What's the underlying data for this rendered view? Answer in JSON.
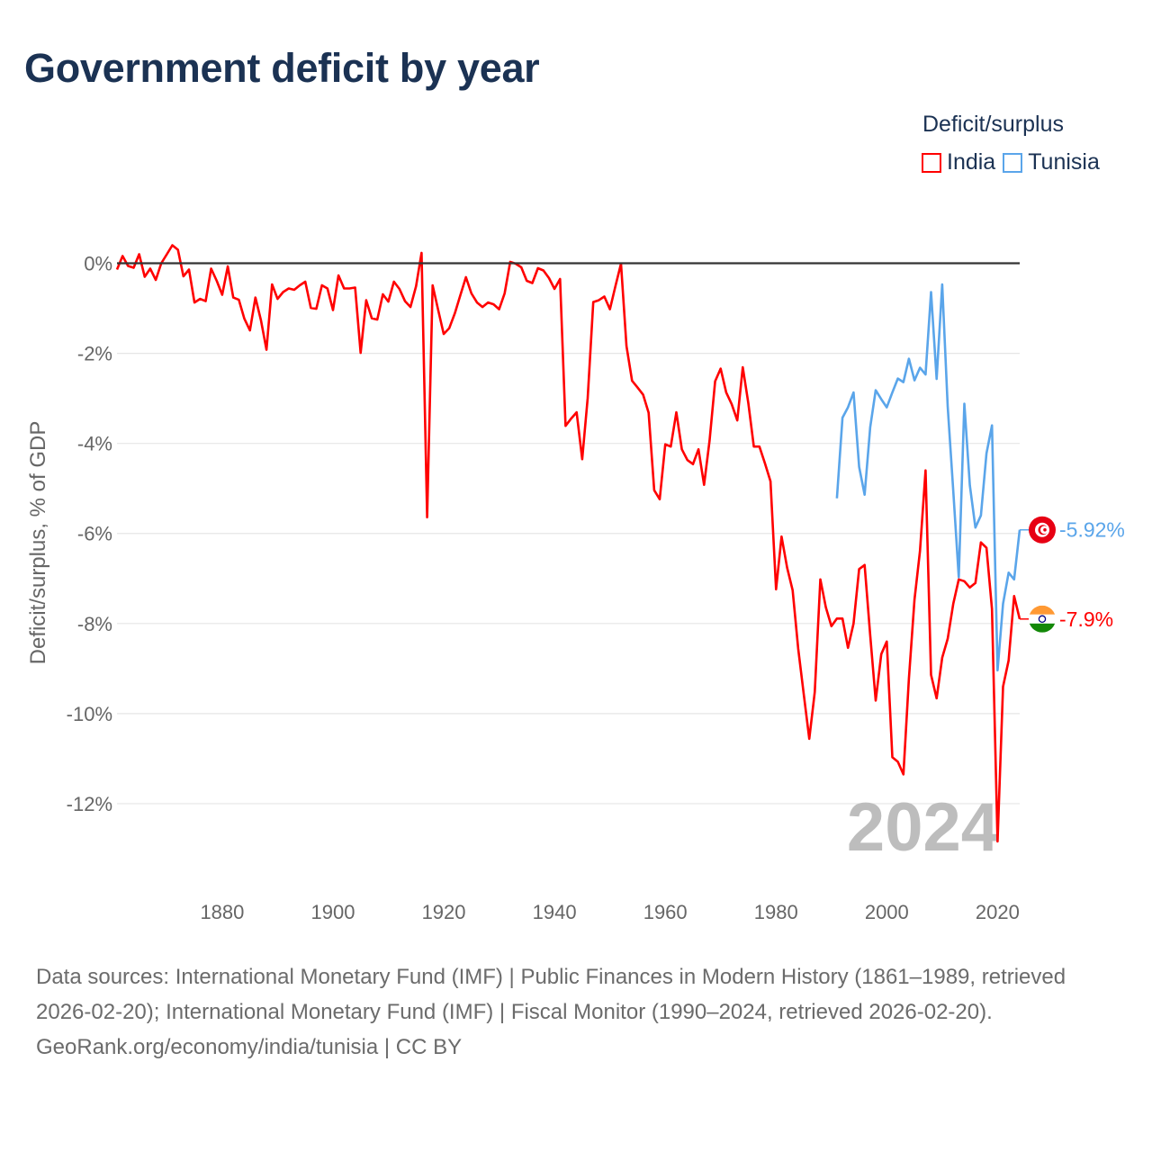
{
  "title": "Government deficit by year",
  "legend": {
    "title": "Deficit/surplus",
    "items": [
      {
        "label": "India",
        "color": "#ff0000"
      },
      {
        "label": "Tunisia",
        "color": "#5aa5ea"
      }
    ]
  },
  "year_watermark": "2024",
  "footer": {
    "sources": "Data sources: International Monetary Fund (IMF) | Public Finances in Modern History (1861–1989, retrieved 2026-02-20); International Monetary Fund (IMF) | Fiscal Monitor (1990–2024, retrieved 2026-02-20).",
    "credit": "GeoRank.org/economy/india/tunisia | CC BY"
  },
  "chart_data": {
    "type": "line",
    "title": "Government deficit by year",
    "xlabel": "",
    "ylabel": "Deficit/surplus, % of GDP",
    "xlim": [
      1861,
      2024
    ],
    "ylim": [
      -13.4,
      0.65
    ],
    "x_ticks": [
      1880,
      1900,
      1920,
      1940,
      1960,
      1980,
      2000,
      2020
    ],
    "y_ticks": [
      0,
      -2,
      -4,
      -6,
      -8,
      -10,
      -12
    ],
    "y_tick_labels": [
      "0%",
      "-2%",
      "-4%",
      "-6%",
      "-8%",
      "-10%",
      "-12%"
    ],
    "grid": true,
    "legend_position": "top-right",
    "series": [
      {
        "name": "India",
        "color": "#ff0000",
        "start_year": 1861,
        "end_label": "-7.9%",
        "flag": "india-flag",
        "values": [
          -0.14,
          0.16,
          -0.06,
          -0.1,
          0.2,
          -0.3,
          -0.12,
          -0.37,
          0,
          0.2,
          0.4,
          0.3,
          -0.29,
          -0.14,
          -0.87,
          -0.79,
          -0.84,
          -0.12,
          -0.39,
          -0.7,
          -0.07,
          -0.76,
          -0.81,
          -1.23,
          -1.49,
          -0.76,
          -1.27,
          -1.92,
          -0.47,
          -0.79,
          -0.64,
          -0.56,
          -0.59,
          -0.49,
          -0.41,
          -0.99,
          -1.01,
          -0.49,
          -0.56,
          -1.04,
          -0.27,
          -0.56,
          -0.56,
          -0.54,
          -1.99,
          -0.82,
          -1.22,
          -1.25,
          -0.69,
          -0.85,
          -0.41,
          -0.57,
          -0.84,
          -0.97,
          -0.51,
          0.23,
          -5.64,
          -0.49,
          -1.04,
          -1.57,
          -1.44,
          -1.11,
          -0.71,
          -0.31,
          -0.67,
          -0.87,
          -0.97,
          -0.87,
          -0.91,
          -1.02,
          -0.67,
          0.03,
          -0.01,
          -0.09,
          -0.39,
          -0.44,
          -0.11,
          -0.16,
          -0.33,
          -0.57,
          -0.35,
          -3.61,
          -3.45,
          -3.31,
          -4.35,
          -2.99,
          -0.86,
          -0.82,
          -0.74,
          -1.02,
          -0.51,
          -0.01,
          -1.84,
          -2.61,
          -2.76,
          -2.92,
          -3.32,
          -5.04,
          -5.24,
          -4.02,
          -4.07,
          -3.31,
          -4.13,
          -4.37,
          -4.46,
          -4.13,
          -4.92,
          -3.94,
          -2.62,
          -2.34,
          -2.87,
          -3.13,
          -3.49,
          -2.31,
          -3.11,
          -4.07,
          -4.07,
          -4.44,
          -4.84,
          -7.24,
          -6.07,
          -6.76,
          -7.26,
          -8.56,
          -9.56,
          -10.56,
          -9.52,
          -7.02,
          -7.64,
          -8.06,
          -7.89,
          -7.89,
          -8.54,
          -8.0,
          -6.79,
          -6.7,
          -8.26,
          -9.71,
          -8.68,
          -8.4,
          -10.97,
          -11.07,
          -11.35,
          -9.22,
          -7.47,
          -6.39,
          -4.6,
          -9.14,
          -9.66,
          -8.76,
          -8.34,
          -7.56,
          -7.02,
          -7.06,
          -7.2,
          -7.1,
          -6.2,
          -6.32,
          -7.68,
          -12.84,
          -9.4,
          -8.82,
          -7.39,
          -7.9
        ]
      },
      {
        "name": "Tunisia",
        "color": "#5aa5ea",
        "start_year": 1991,
        "end_label": "-5.92%",
        "flag": "tunisia-flag",
        "values": [
          -5.22,
          -3.43,
          -3.2,
          -2.87,
          -4.52,
          -5.14,
          -3.64,
          -2.82,
          -3.02,
          -3.2,
          -2.87,
          -2.56,
          -2.64,
          -2.12,
          -2.6,
          -2.32,
          -2.47,
          -0.64,
          -2.57,
          -0.47,
          -3.18,
          -5.06,
          -6.97,
          -3.12,
          -4.93,
          -5.87,
          -5.6,
          -4.22,
          -3.6,
          -9.04,
          -7.56,
          -6.87,
          -7.02,
          -5.92
        ]
      }
    ]
  }
}
